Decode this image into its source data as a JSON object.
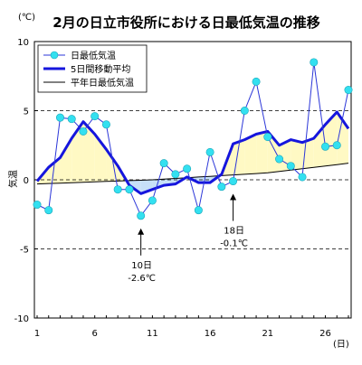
{
  "chart_data": {
    "type": "line",
    "title": "2月の日立市役所における日最低気温の推移",
    "ylabel": "気温",
    "yunit": "(℃)",
    "xunit": "(日)",
    "xlim": [
      1,
      28
    ],
    "ylim": [
      -10,
      10
    ],
    "x_ticks": [
      1,
      6,
      11,
      16,
      21,
      26
    ],
    "y_ticks": [
      10,
      5,
      0,
      -5,
      -10
    ],
    "dashed_gridlines": [
      5,
      0,
      -5
    ],
    "legend_position": "top-left",
    "x": [
      1,
      2,
      3,
      4,
      5,
      6,
      7,
      8,
      9,
      10,
      11,
      12,
      13,
      14,
      15,
      16,
      17,
      18,
      19,
      20,
      21,
      22,
      23,
      24,
      25,
      26,
      27,
      28
    ],
    "series": [
      {
        "name": "日最低気温",
        "color": "#2b36d8",
        "marker_color": "#33e0f0",
        "values": [
          -1.8,
          -2.2,
          4.5,
          4.4,
          3.5,
          4.6,
          4.0,
          -0.7,
          -0.7,
          -2.6,
          -1.5,
          1.2,
          0.4,
          0.8,
          -2.2,
          2.0,
          -0.5,
          -0.1,
          5.0,
          7.1,
          3.1,
          1.5,
          1.0,
          0.2,
          8.5,
          2.4,
          2.5,
          6.5
        ]
      },
      {
        "name": "5日間移動平均",
        "color": "#1515dd",
        "values": [
          -0.1,
          0.9,
          1.6,
          3.0,
          4.2,
          3.3,
          2.2,
          1.0,
          -0.4,
          -1.0,
          -0.7,
          -0.4,
          -0.3,
          0.2,
          -0.2,
          -0.2,
          0.4,
          2.6,
          2.9,
          3.3,
          3.5,
          2.5,
          2.9,
          2.7,
          3.0,
          4.0,
          4.9,
          3.7
        ]
      },
      {
        "name": "平年日最低気温",
        "color": "#000000",
        "values": [
          -0.3,
          -0.27,
          -0.24,
          -0.21,
          -0.18,
          -0.15,
          -0.12,
          -0.09,
          -0.06,
          -0.03,
          0.0,
          0.05,
          0.1,
          0.15,
          0.2,
          0.25,
          0.3,
          0.35,
          0.4,
          0.45,
          0.5,
          0.6,
          0.7,
          0.8,
          0.9,
          1.0,
          1.1,
          1.2
        ]
      }
    ],
    "fill_above_color": "#fff9c4",
    "fill_below_color": "#c6e0f8",
    "annotations": [
      {
        "x": 10,
        "y": -2.6,
        "label_day": "10日",
        "label_value": "-2.6℃"
      },
      {
        "x": 18,
        "y": -0.1,
        "label_day": "18日",
        "label_value": "-0.1℃"
      }
    ]
  }
}
